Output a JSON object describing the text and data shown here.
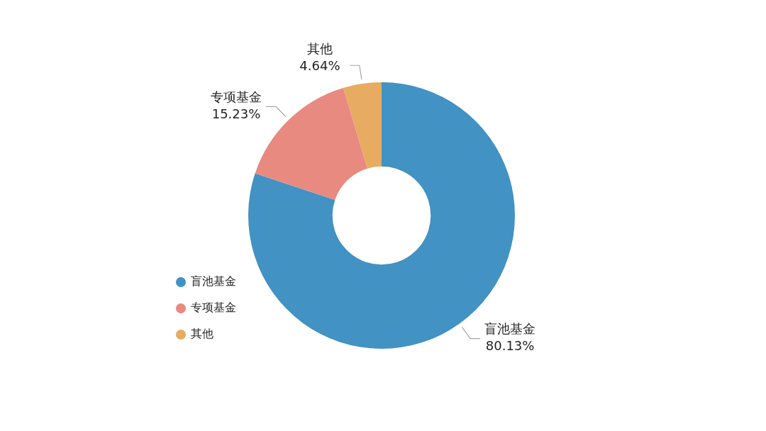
{
  "chart_data": {
    "type": "donut",
    "categories": [
      "盲池基金",
      "专项基金",
      "其他"
    ],
    "values": [
      80.13,
      15.23,
      4.64
    ],
    "colors": [
      "#4292c4",
      "#e88a80",
      "#e8ab62"
    ],
    "value_labels": [
      "80.13%",
      "15.23%",
      "4.64%"
    ],
    "legend": "bottom left"
  }
}
